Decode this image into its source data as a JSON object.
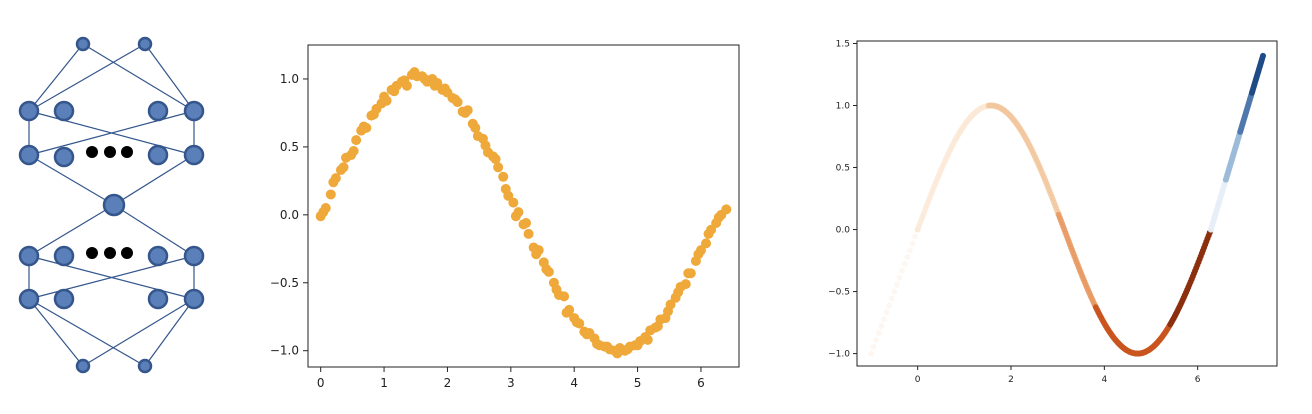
{
  "colors": {
    "node_fill": "#5b7fb8",
    "node_stroke": "#34568c",
    "edge": "#34568c",
    "ellipsis": "#000000",
    "scatter": "#efa83a",
    "axis": "#222222"
  },
  "network": {
    "layers": [
      {
        "nodes": 2,
        "ellipsis": false
      },
      {
        "nodes": 4,
        "ellipsis": false
      },
      {
        "nodes": 4,
        "ellipsis": true
      },
      {
        "nodes": 1,
        "ellipsis": false
      },
      {
        "nodes": 4,
        "ellipsis": true
      },
      {
        "nodes": 4,
        "ellipsis": false
      },
      {
        "nodes": 2,
        "ellipsis": false
      }
    ]
  },
  "chart_data": [
    {
      "type": "scatter",
      "title": "",
      "xlabel": "",
      "ylabel": "",
      "xlim": [
        -0.2,
        6.6
      ],
      "ylim": [
        -1.12,
        1.25
      ],
      "xticks": [
        0,
        1,
        2,
        3,
        4,
        5,
        6
      ],
      "xtick_labels": [
        "0",
        "1",
        "2",
        "3",
        "4",
        "5",
        "6"
      ],
      "yticks": [
        -1.0,
        -0.5,
        0.0,
        0.5,
        1.0
      ],
      "ytick_labels": [
        "−1.0",
        "−0.5",
        "0.0",
        "0.5",
        "1.0"
      ],
      "grid": false,
      "series": [
        {
          "color": "#efa83a",
          "x": [
            0.0,
            0.08,
            0.16,
            0.24,
            0.32,
            0.4,
            0.48,
            0.56,
            0.64,
            0.72,
            0.8,
            0.88,
            0.96,
            1.04,
            1.12,
            1.2,
            1.28,
            1.36,
            1.44,
            1.52,
            1.6,
            1.68,
            1.76,
            1.84,
            1.92,
            2.0,
            2.08,
            2.16,
            2.24,
            2.32,
            2.4,
            2.48,
            2.56,
            2.64,
            2.72,
            2.8,
            2.88,
            2.96,
            3.04,
            3.12,
            3.2,
            3.28,
            3.36,
            3.44,
            3.52,
            3.6,
            3.68,
            3.76,
            3.84,
            3.92,
            4.0,
            4.08,
            4.16,
            4.24,
            4.32,
            4.4,
            4.48,
            4.56,
            4.64,
            4.72,
            4.8,
            4.88,
            4.96,
            5.04,
            5.12,
            5.2,
            5.28,
            5.36,
            5.44,
            5.52,
            5.6,
            5.68,
            5.76,
            5.84,
            5.92,
            6.0,
            6.08,
            6.16,
            6.24,
            6.32,
            6.4,
            0.04,
            0.2,
            0.36,
            0.52,
            0.68,
            0.84,
            1.0,
            1.16,
            1.32,
            1.48,
            1.64,
            1.8,
            1.96,
            2.12,
            2.28,
            2.44,
            2.6,
            2.76,
            2.92,
            3.08,
            3.24,
            3.4,
            3.56,
            3.72,
            3.88,
            4.04,
            4.2,
            4.36,
            4.52,
            4.68,
            4.84,
            5.0,
            5.16,
            5.32,
            5.48,
            5.64,
            5.8,
            5.96,
            6.12,
            6.28
          ],
          "y": [
            -0.01,
            0.05,
            0.15,
            0.27,
            0.33,
            0.42,
            0.44,
            0.55,
            0.62,
            0.64,
            0.73,
            0.78,
            0.82,
            0.84,
            0.92,
            0.95,
            0.98,
            0.95,
            1.03,
            1.02,
            1.02,
            0.98,
            1.0,
            0.97,
            0.92,
            0.9,
            0.86,
            0.83,
            0.76,
            0.77,
            0.67,
            0.58,
            0.56,
            0.46,
            0.43,
            0.35,
            0.28,
            0.14,
            0.09,
            0.02,
            -0.07,
            -0.14,
            -0.24,
            -0.26,
            -0.35,
            -0.42,
            -0.5,
            -0.59,
            -0.6,
            -0.7,
            -0.76,
            -0.8,
            -0.86,
            -0.87,
            -0.91,
            -0.96,
            -0.97,
            -0.99,
            -1.0,
            -0.98,
            -1.0,
            -0.97,
            -0.96,
            -0.93,
            -0.9,
            -0.85,
            -0.83,
            -0.77,
            -0.76,
            -0.66,
            -0.61,
            -0.53,
            -0.51,
            -0.43,
            -0.34,
            -0.26,
            -0.21,
            -0.11,
            -0.06,
            0.0,
            0.04,
            0.02,
            0.24,
            0.35,
            0.47,
            0.65,
            0.74,
            0.87,
            0.91,
            0.99,
            1.05,
            1.0,
            0.95,
            0.93,
            0.85,
            0.75,
            0.64,
            0.51,
            0.41,
            0.19,
            -0.01,
            -0.06,
            -0.29,
            -0.4,
            -0.55,
            -0.72,
            -0.79,
            -0.88,
            -0.95,
            -0.97,
            -1.02,
            -0.99,
            -0.96,
            -0.92,
            -0.82,
            -0.71,
            -0.57,
            -0.43,
            -0.29,
            -0.14,
            -0.02
          ]
        }
      ]
    },
    {
      "type": "scatter",
      "title": "",
      "xlabel": "",
      "ylabel": "",
      "xlim": [
        -1.3,
        7.7
      ],
      "ylim": [
        -1.1,
        1.52
      ],
      "xticks": [
        0,
        2,
        4,
        6
      ],
      "xtick_labels": [
        "0",
        "2",
        "4",
        "6"
      ],
      "yticks": [
        -1.0,
        -0.5,
        0.0,
        0.5,
        1.0,
        1.5
      ],
      "ytick_labels": [
        "−1.0",
        "−0.5",
        "0.0",
        "0.5",
        "1.0",
        "1.5"
      ],
      "grid": false,
      "colormap": [
        "#fbe8d6",
        "#f3c79e",
        "#e89a63",
        "#c9541f",
        "#8b2f0e",
        "#e6eef7",
        "#9bbbd9",
        "#4f79ad",
        "#1f4b86"
      ],
      "segments": [
        {
          "x_range": [
            -1.0,
            0.0
          ],
          "y_range": [
            -1.0,
            0.0
          ],
          "shape": "line"
        },
        {
          "x_range": [
            0.0,
            6.283
          ],
          "shape": "sine"
        },
        {
          "x_range": [
            6.283,
            7.4
          ],
          "y_range": [
            0.0,
            1.4
          ],
          "shape": "line"
        }
      ]
    }
  ]
}
